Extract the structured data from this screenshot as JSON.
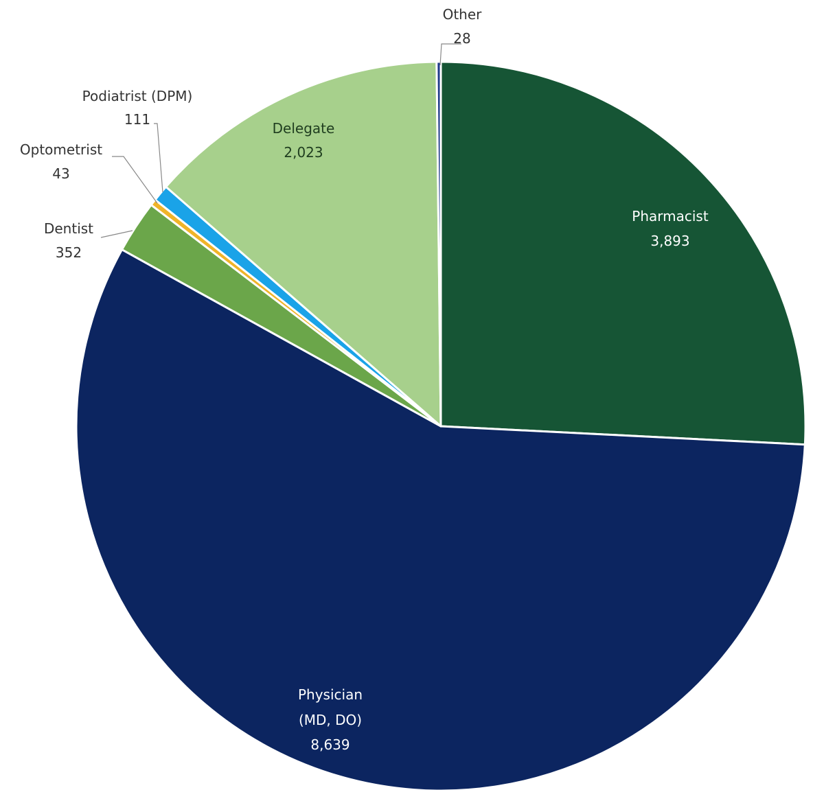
{
  "chart_data": {
    "type": "pie",
    "title": "",
    "start_angle_deg": 0,
    "direction": "clockwise",
    "slices": [
      {
        "label": "Pharmacist",
        "value_label": "3,893",
        "value": 3893,
        "color": "#165535"
      },
      {
        "label": "Physician (MD, DO)",
        "label_lines": [
          "Physician",
          "(MD, DO)"
        ],
        "value_label": "8,639",
        "value": 8639,
        "color": "#0c2560"
      },
      {
        "label": "Dentist",
        "value_label": "352",
        "value": 352,
        "color": "#6ba64a"
      },
      {
        "label": "Optometrist",
        "value_label": "43",
        "value": 43,
        "color": "#f0b429"
      },
      {
        "label": "Podiatrist (DPM)",
        "value_label": "111",
        "value": 111,
        "color": "#1aa3e8"
      },
      {
        "label": "Delegate",
        "value_label": "2,023",
        "value": 2023,
        "color": "#a7d08c"
      },
      {
        "label": "Other",
        "value_label": "28",
        "value": 28,
        "color": "#1e3a8a"
      }
    ]
  }
}
